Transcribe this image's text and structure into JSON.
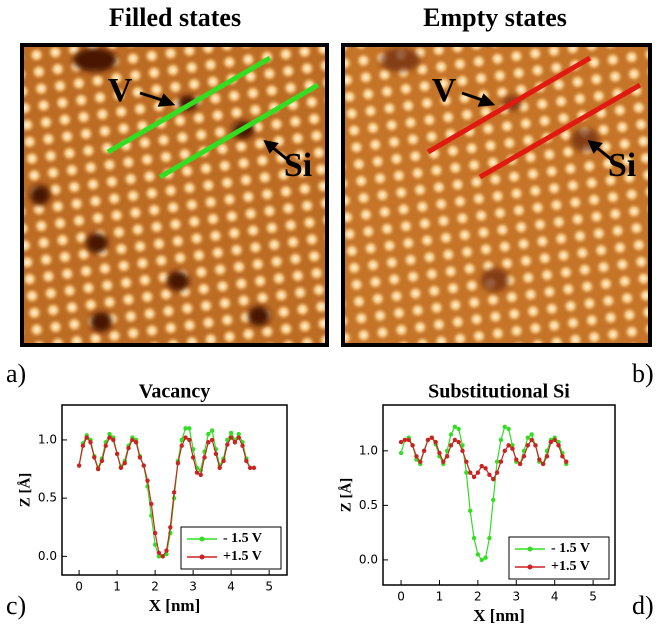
{
  "panels": [
    {
      "title": "Filled states",
      "label": "a)",
      "markers": [
        "V",
        "Si"
      ]
    },
    {
      "title": "Empty states",
      "label": "b)",
      "markers": [
        "V",
        "Si"
      ]
    }
  ],
  "chart_data": [
    {
      "type": "line",
      "title": "Vacancy",
      "panel_label": "c)",
      "x_label": "X [nm]",
      "y_label": "Z [Å]",
      "x": [
        0,
        0.1,
        0.2,
        0.3,
        0.4,
        0.5,
        0.6,
        0.7,
        0.8,
        0.9,
        1.0,
        1.1,
        1.2,
        1.3,
        1.4,
        1.5,
        1.6,
        1.7,
        1.8,
        1.9,
        2.0,
        2.1,
        2.2,
        2.3,
        2.4,
        2.5,
        2.6,
        2.7,
        2.8,
        2.9,
        3.0,
        3.1,
        3.2,
        3.3,
        3.4,
        3.5,
        3.6,
        3.7,
        3.8,
        3.9,
        4.0,
        4.1,
        4.2,
        4.3,
        4.4,
        4.5,
        4.6
      ],
      "series": [
        {
          "name": "- 1.5 V",
          "color": "#33dd22",
          "values": [
            0.78,
            0.97,
            1.04,
            1.0,
            0.86,
            0.76,
            0.84,
            0.98,
            1.05,
            1.02,
            0.88,
            0.77,
            0.82,
            0.95,
            1.02,
            1.0,
            0.86,
            0.78,
            0.6,
            0.35,
            0.1,
            0.0,
            0.0,
            0.02,
            0.2,
            0.5,
            0.82,
            1.0,
            1.1,
            1.1,
            0.92,
            0.76,
            0.74,
            0.9,
            1.05,
            1.08,
            0.92,
            0.78,
            0.84,
            1.0,
            1.06,
            1.0,
            1.05,
            0.98,
            0.84,
            0.76,
            0.76
          ]
        },
        {
          "name": "+1.5 V",
          "color": "#cc2222",
          "values": [
            0.78,
            0.95,
            1.02,
            0.98,
            0.85,
            0.75,
            0.82,
            0.95,
            1.02,
            1.0,
            0.88,
            0.76,
            0.8,
            0.93,
            1.0,
            0.98,
            0.85,
            0.78,
            0.65,
            0.45,
            0.2,
            0.03,
            0.0,
            0.05,
            0.25,
            0.55,
            0.8,
            0.95,
            1.02,
            1.0,
            0.85,
            0.72,
            0.7,
            0.85,
            0.98,
            1.0,
            0.88,
            0.76,
            0.82,
            0.96,
            1.02,
            0.98,
            1.02,
            0.95,
            0.82,
            0.76,
            0.76
          ]
        }
      ],
      "xlim": [
        -0.45,
        5.47
      ],
      "ylim": [
        -0.16,
        1.3
      ],
      "xticks": [
        0,
        1,
        2,
        3,
        4,
        5
      ],
      "yticks": [
        {
          "value": 0,
          "label": "0.0"
        },
        {
          "value": 0.5,
          "label": "0.5"
        },
        {
          "value": 1,
          "label": "1.0"
        }
      ],
      "legend": "lower right"
    },
    {
      "type": "line",
      "title": "Substitutional Si",
      "panel_label": "d)",
      "x_label": "X [nm]",
      "y_label": "Z [Å]",
      "x": [
        0,
        0.1,
        0.2,
        0.3,
        0.4,
        0.5,
        0.6,
        0.7,
        0.8,
        0.9,
        1.0,
        1.1,
        1.2,
        1.3,
        1.4,
        1.5,
        1.6,
        1.7,
        1.8,
        1.9,
        2.0,
        2.1,
        2.2,
        2.3,
        2.4,
        2.5,
        2.6,
        2.7,
        2.8,
        2.9,
        3.0,
        3.1,
        3.2,
        3.3,
        3.4,
        3.5,
        3.6,
        3.7,
        3.8,
        3.9,
        4.0,
        4.1,
        4.2,
        4.3
      ],
      "series": [
        {
          "name": "- 1.5 V",
          "color": "#33dd22",
          "values": [
            0.98,
            1.1,
            1.12,
            1.05,
            0.92,
            0.88,
            1.0,
            1.1,
            1.12,
            1.06,
            0.95,
            0.88,
            1.0,
            1.15,
            1.22,
            1.2,
            1.05,
            0.8,
            0.45,
            0.2,
            0.05,
            0.0,
            0.02,
            0.2,
            0.55,
            0.9,
            1.1,
            1.22,
            1.2,
            1.05,
            0.9,
            0.88,
            1.0,
            1.12,
            1.15,
            1.05,
            0.9,
            0.88,
            1.0,
            1.1,
            1.12,
            1.08,
            0.98,
            0.88
          ]
        },
        {
          "name": "+1.5 V",
          "color": "#cc2222",
          "values": [
            1.08,
            1.1,
            1.1,
            1.05,
            0.95,
            0.9,
            1.0,
            1.1,
            1.12,
            1.08,
            0.98,
            0.9,
            0.95,
            1.05,
            1.1,
            1.08,
            1.0,
            0.9,
            0.8,
            0.76,
            0.8,
            0.86,
            0.84,
            0.78,
            0.74,
            0.8,
            0.9,
            1.0,
            1.05,
            1.02,
            0.92,
            0.88,
            0.95,
            1.05,
            1.1,
            1.05,
            0.92,
            0.88,
            0.95,
            1.08,
            1.1,
            1.05,
            0.95,
            0.9
          ]
        }
      ],
      "xlim": [
        -0.47,
        5.57
      ],
      "ylim": [
        -0.23,
        1.42
      ],
      "xticks": [
        0,
        1,
        2,
        3,
        4,
        5
      ],
      "yticks": [
        {
          "value": 0,
          "label": "0.0"
        },
        {
          "value": 0.5,
          "label": "0.5"
        },
        {
          "value": 1,
          "label": "1.0"
        }
      ],
      "legend": "lower right"
    }
  ]
}
